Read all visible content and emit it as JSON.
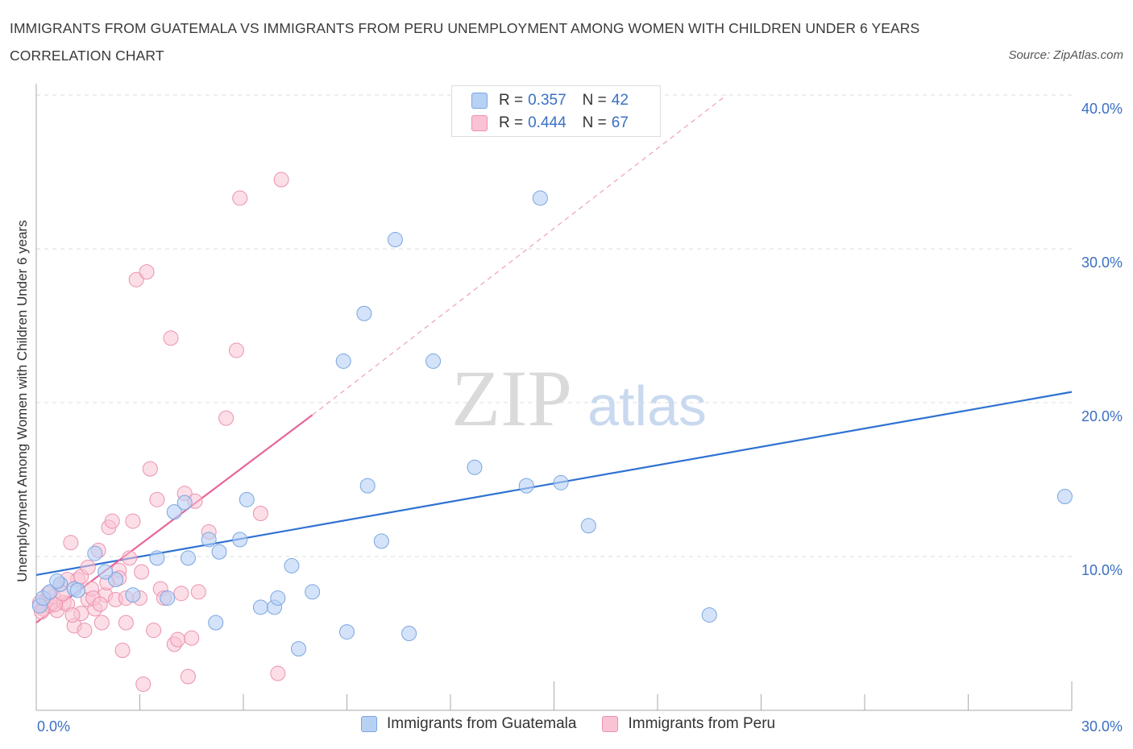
{
  "title": "IMMIGRANTS FROM GUATEMALA VS IMMIGRANTS FROM PERU UNEMPLOYMENT AMONG WOMEN WITH CHILDREN UNDER 6 YEARS CORRELATION CHART",
  "source": "Source: ZipAtlas.com",
  "watermark": {
    "zip": "ZIP",
    "atlas": "atlas"
  },
  "legend": {
    "r_label": "R =",
    "n_label": "N =",
    "guatemala": {
      "r": "0.357",
      "n": "42"
    },
    "peru": {
      "r": "0.444",
      "n": "67"
    }
  },
  "colors": {
    "guatemala_fill": "#b7d1f5",
    "guatemala_stroke": "#7aa6e0",
    "guatemala_line": "#2f72d2",
    "peru_fill": "#f9c3d3",
    "peru_stroke": "#eb92ae",
    "peru_line": "#e8649a",
    "tick_label": "#3a6fc4"
  },
  "chart_data": {
    "type": "scatter",
    "title": "IMMIGRANTS FROM GUATEMALA VS IMMIGRANTS FROM PERU UNEMPLOYMENT AMONG WOMEN WITH CHILDREN UNDER 6 YEARS CORRELATION CHART",
    "xlabel": "",
    "ylabel": "Unemployment Among Women with Children Under 6 years",
    "xlim": [
      0,
      30
    ],
    "ylim": [
      0,
      40
    ],
    "x_tick_labels": [
      "0.0%",
      "30.0%"
    ],
    "y_ticks": [
      10,
      20,
      30,
      40
    ],
    "y_tick_labels": [
      "10.0%",
      "20.0%",
      "30.0%",
      "40.0%"
    ],
    "grid": true,
    "legend_position": "top-center",
    "series": [
      {
        "name": "Immigrants from Guatemala",
        "points": [
          [
            0.1,
            6.8
          ],
          [
            0.2,
            7.3
          ],
          [
            0.4,
            7.7
          ],
          [
            0.7,
            8.2
          ],
          [
            1.1,
            7.9
          ],
          [
            1.7,
            10.2
          ],
          [
            2.3,
            8.5
          ],
          [
            2.0,
            9.0
          ],
          [
            2.8,
            7.5
          ],
          [
            3.5,
            9.9
          ],
          [
            3.8,
            7.3
          ],
          [
            4.0,
            12.9
          ],
          [
            4.4,
            9.9
          ],
          [
            4.3,
            13.5
          ],
          [
            5.0,
            11.1
          ],
          [
            5.3,
            10.3
          ],
          [
            5.2,
            5.7
          ],
          [
            5.9,
            11.1
          ],
          [
            6.1,
            13.7
          ],
          [
            6.5,
            6.7
          ],
          [
            6.9,
            6.7
          ],
          [
            7.0,
            7.3
          ],
          [
            7.4,
            9.4
          ],
          [
            7.6,
            4.0
          ],
          [
            8.0,
            7.7
          ],
          [
            8.9,
            22.7
          ],
          [
            9.0,
            5.1
          ],
          [
            9.5,
            25.8
          ],
          [
            9.6,
            14.6
          ],
          [
            10.0,
            11.0
          ],
          [
            10.4,
            30.6
          ],
          [
            10.8,
            5.0
          ],
          [
            11.5,
            22.7
          ],
          [
            12.7,
            15.8
          ],
          [
            14.2,
            14.6
          ],
          [
            14.6,
            33.3
          ],
          [
            15.2,
            14.8
          ],
          [
            16.0,
            12.0
          ],
          [
            19.5,
            6.2
          ],
          [
            29.8,
            13.9
          ],
          [
            0.6,
            8.4
          ],
          [
            1.2,
            7.8
          ]
        ]
      },
      {
        "name": "Immigrants from Peru",
        "points": [
          [
            0.1,
            7.0
          ],
          [
            0.2,
            6.6
          ],
          [
            0.3,
            7.2
          ],
          [
            0.4,
            6.8
          ],
          [
            0.5,
            7.4
          ],
          [
            0.6,
            6.5
          ],
          [
            0.7,
            8.2
          ],
          [
            0.8,
            7.0
          ],
          [
            0.9,
            6.9
          ],
          [
            1.0,
            10.9
          ],
          [
            1.1,
            5.5
          ],
          [
            1.2,
            8.5
          ],
          [
            1.3,
            6.3
          ],
          [
            1.4,
            5.2
          ],
          [
            1.5,
            7.2
          ],
          [
            1.6,
            7.9
          ],
          [
            1.7,
            6.6
          ],
          [
            1.8,
            10.4
          ],
          [
            1.9,
            5.7
          ],
          [
            2.0,
            7.5
          ],
          [
            2.1,
            11.9
          ],
          [
            2.2,
            12.3
          ],
          [
            2.3,
            7.2
          ],
          [
            2.4,
            9.1
          ],
          [
            2.5,
            3.9
          ],
          [
            2.6,
            5.7
          ],
          [
            2.7,
            9.9
          ],
          [
            2.8,
            12.3
          ],
          [
            2.9,
            28.0
          ],
          [
            3.0,
            7.3
          ],
          [
            3.1,
            1.7
          ],
          [
            3.2,
            28.5
          ],
          [
            3.3,
            15.7
          ],
          [
            3.4,
            5.2
          ],
          [
            3.5,
            13.7
          ],
          [
            3.6,
            7.9
          ],
          [
            3.7,
            7.3
          ],
          [
            3.9,
            24.2
          ],
          [
            4.0,
            4.3
          ],
          [
            4.1,
            4.6
          ],
          [
            4.2,
            7.6
          ],
          [
            4.3,
            14.1
          ],
          [
            4.4,
            2.2
          ],
          [
            4.5,
            4.7
          ],
          [
            4.6,
            13.6
          ],
          [
            4.7,
            7.7
          ],
          [
            5.0,
            11.6
          ],
          [
            5.5,
            19.0
          ],
          [
            5.8,
            23.4
          ],
          [
            5.9,
            33.3
          ],
          [
            6.5,
            12.8
          ],
          [
            7.0,
            2.4
          ],
          [
            7.1,
            34.5
          ],
          [
            0.9,
            8.5
          ],
          [
            1.3,
            8.7
          ],
          [
            1.5,
            9.3
          ],
          [
            2.4,
            8.6
          ],
          [
            0.15,
            6.4
          ],
          [
            0.35,
            7.6
          ],
          [
            0.55,
            6.9
          ],
          [
            0.75,
            7.6
          ],
          [
            1.05,
            6.2
          ],
          [
            1.65,
            7.3
          ],
          [
            1.85,
            6.9
          ],
          [
            2.05,
            8.3
          ],
          [
            2.6,
            7.3
          ],
          [
            3.05,
            9.0
          ]
        ]
      }
    ],
    "trendlines": [
      {
        "series": "Immigrants from Guatemala",
        "x": [
          0,
          30
        ],
        "y": [
          8.8,
          20.7
        ]
      },
      {
        "series": "Immigrants from Peru",
        "x": [
          0,
          8.0
        ],
        "y": [
          5.7,
          19.2
        ],
        "dashed_extension_to": [
          20.0,
          40.0
        ]
      }
    ]
  },
  "bottom_legend": {
    "guatemala": "Immigrants from Guatemala",
    "peru": "Immigrants from Peru"
  }
}
